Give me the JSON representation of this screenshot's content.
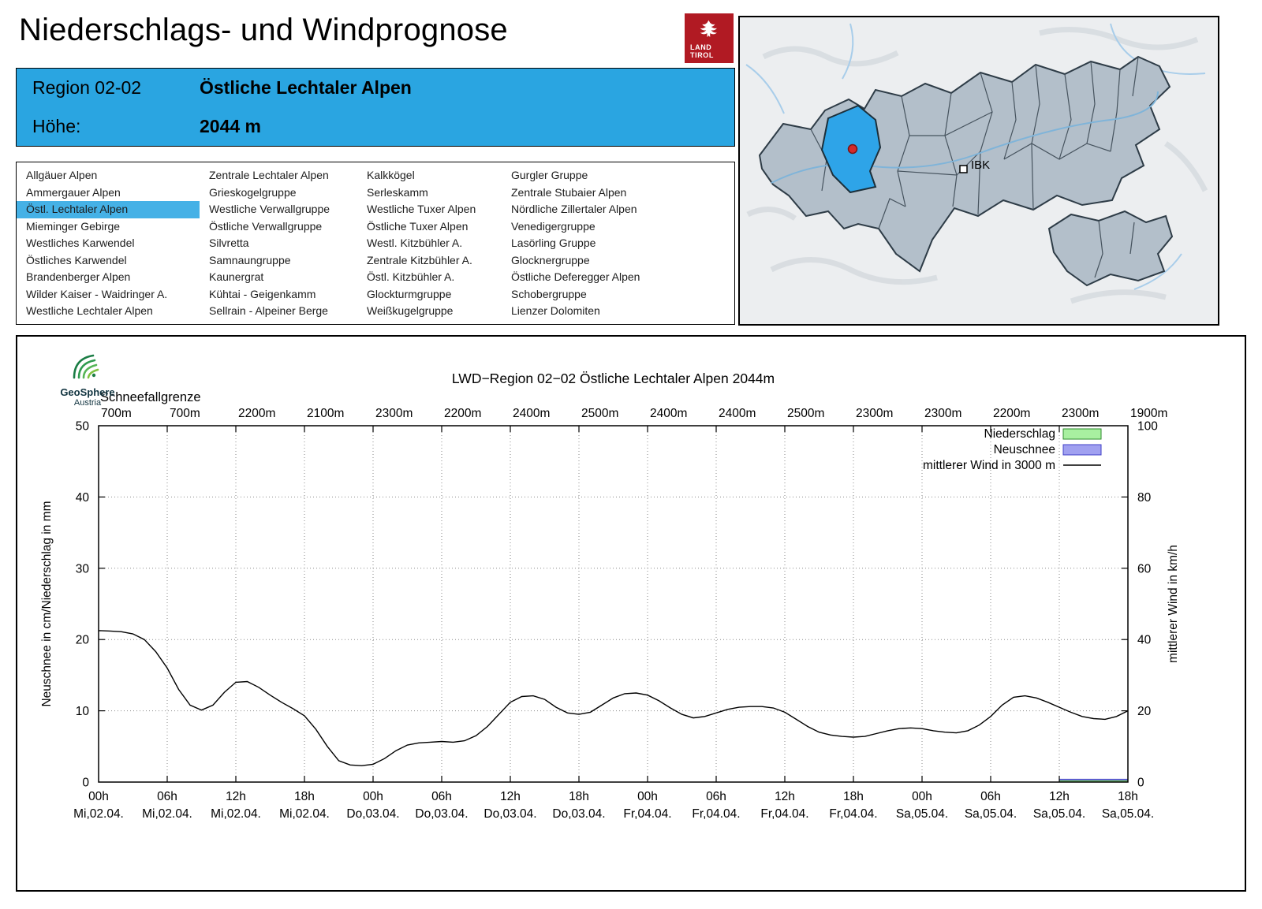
{
  "header": {
    "title": "Niederschlags- und Windprognose",
    "logo_line1": "LAND",
    "logo_line2": "TIROL"
  },
  "region_info": {
    "region_label": "Region 02-02",
    "region_name": "Östliche Lechtaler Alpen",
    "altitude_label": "Höhe:",
    "altitude_value": "2044 m"
  },
  "region_list": {
    "selected": "Östl. Lechtaler Alpen",
    "columns": [
      [
        "Allgäuer Alpen",
        "Ammergauer Alpen",
        "Östl. Lechtaler Alpen",
        "Mieminger Gebirge",
        "Westliches Karwendel",
        "Östliches Karwendel",
        "Brandenberger Alpen",
        "Wilder Kaiser - Waidringer A.",
        "Westliche Lechtaler Alpen"
      ],
      [
        "Zentrale Lechtaler Alpen",
        "Grieskogelgruppe",
        "Westliche Verwallgruppe",
        "Östliche Verwallgruppe",
        "Silvretta",
        "Samnaungruppe",
        "Kaunergrat",
        "Kühtai - Geigenkamm",
        "Sellrain - Alpeiner Berge"
      ],
      [
        "Kalkkögel",
        "Serleskamm",
        "Westliche Tuxer Alpen",
        "Östliche Tuxer Alpen",
        "Westl. Kitzbühler A.",
        "Zentrale Kitzbühler A.",
        "Östl. Kitzbühler A.",
        "Glockturmgruppe",
        "Weißkugelgruppe"
      ],
      [
        "Gurgler Gruppe",
        "Zentrale Stubaier Alpen",
        "Nördliche Zillertaler Alpen",
        "Venedigergruppe",
        "Lasörling Gruppe",
        "Glocknergruppe",
        "Östliche Deferegger Alpen",
        "Schobergruppe",
        "Lienzer Dolomiten"
      ]
    ]
  },
  "map": {
    "ibk_label": "IBK"
  },
  "geosphere": {
    "name": "GeoSphere",
    "country": "Austria"
  },
  "chart_data": {
    "type": "line",
    "title": "LWD−Region 02−02 Östliche Lechtaler Alpen 2044m",
    "snowline_label": "Schneefallgrenze",
    "snowline_values": [
      "700m",
      "700m",
      "2200m",
      "2100m",
      "2300m",
      "2200m",
      "2400m",
      "2500m",
      "2400m",
      "2400m",
      "2500m",
      "2300m",
      "2300m",
      "2200m",
      "2300m",
      "1900m"
    ],
    "x_tick_hours": [
      "00h",
      "06h",
      "12h",
      "18h",
      "00h",
      "06h",
      "12h",
      "18h",
      "00h",
      "06h",
      "12h",
      "18h",
      "00h",
      "06h",
      "12h",
      "18h"
    ],
    "x_tick_dates": [
      "Mi,02.04.",
      "Mi,02.04.",
      "Mi,02.04.",
      "Mi,02.04.",
      "Do,03.04.",
      "Do,03.04.",
      "Do,03.04.",
      "Do,03.04.",
      "Fr,04.04.",
      "Fr,04.04.",
      "Fr,04.04.",
      "Fr,04.04.",
      "Sa,05.04.",
      "Sa,05.04.",
      "Sa,05.04.",
      "Sa,05.04."
    ],
    "x_range_hours": [
      0,
      90
    ],
    "x_tick_step_hours": 6,
    "ylabel_left": "Neuschnee in cm/Niederschlag in mm",
    "ylabel_right": "mittlerer Wind in km/h",
    "ylim_left": [
      0,
      50
    ],
    "ylim_right": [
      0,
      100
    ],
    "yticks_left": [
      0,
      10,
      20,
      30,
      40,
      50
    ],
    "yticks_right": [
      0,
      20,
      40,
      60,
      80,
      100
    ],
    "grid": true,
    "legend_position": "top-right-inside",
    "legend": [
      {
        "label": "Niederschlag",
        "swatch": "box",
        "fill": "#a8f0a0",
        "stroke": "#2e8b2e"
      },
      {
        "label": "Neuschnee",
        "swatch": "box",
        "fill": "#a0a0f0",
        "stroke": "#4040c8"
      },
      {
        "label": "mittlerer Wind in 3000 m",
        "swatch": "line",
        "stroke": "#000000"
      }
    ],
    "series": [
      {
        "name": "mittlerer Wind in 3000 m",
        "type": "line",
        "axis": "right",
        "unit": "km/h",
        "color": "#000000",
        "points": [
          [
            0,
            42.5
          ],
          [
            1,
            42.4
          ],
          [
            2,
            42.2
          ],
          [
            3,
            41.6
          ],
          [
            4,
            40
          ],
          [
            5,
            36.6
          ],
          [
            6,
            32
          ],
          [
            7,
            26
          ],
          [
            8,
            21.6
          ],
          [
            9,
            20.2
          ],
          [
            10,
            21.6
          ],
          [
            11,
            25.2
          ],
          [
            12,
            28
          ],
          [
            13,
            28.2
          ],
          [
            14,
            26.6
          ],
          [
            15,
            24.4
          ],
          [
            16,
            22.4
          ],
          [
            17,
            20.6
          ],
          [
            18,
            18.6
          ],
          [
            19,
            14.8
          ],
          [
            20,
            10
          ],
          [
            21,
            6
          ],
          [
            22,
            4.8
          ],
          [
            23,
            4.6
          ],
          [
            24,
            5
          ],
          [
            25,
            6.6
          ],
          [
            26,
            8.8
          ],
          [
            27,
            10.4
          ],
          [
            28,
            11
          ],
          [
            29,
            11.2
          ],
          [
            30,
            11.4
          ],
          [
            31,
            11.2
          ],
          [
            32,
            11.6
          ],
          [
            33,
            13
          ],
          [
            34,
            15.6
          ],
          [
            35,
            19
          ],
          [
            36,
            22.4
          ],
          [
            37,
            24
          ],
          [
            38,
            24.2
          ],
          [
            39,
            23.2
          ],
          [
            40,
            21
          ],
          [
            41,
            19.4
          ],
          [
            42,
            19
          ],
          [
            43,
            19.6
          ],
          [
            44,
            21.6
          ],
          [
            45,
            23.6
          ],
          [
            46,
            24.8
          ],
          [
            47,
            25
          ],
          [
            48,
            24.4
          ],
          [
            49,
            22.8
          ],
          [
            50,
            20.8
          ],
          [
            51,
            19
          ],
          [
            52,
            18
          ],
          [
            53,
            18.4
          ],
          [
            54,
            19.4
          ],
          [
            55,
            20.4
          ],
          [
            56,
            21
          ],
          [
            57,
            21.2
          ],
          [
            58,
            21.2
          ],
          [
            59,
            20.8
          ],
          [
            60,
            19.6
          ],
          [
            61,
            17.6
          ],
          [
            62,
            15.6
          ],
          [
            63,
            14
          ],
          [
            64,
            13.2
          ],
          [
            65,
            12.8
          ],
          [
            66,
            12.6
          ],
          [
            67,
            12.8
          ],
          [
            68,
            13.6
          ],
          [
            69,
            14.4
          ],
          [
            70,
            15
          ],
          [
            71,
            15.2
          ],
          [
            72,
            15
          ],
          [
            73,
            14.4
          ],
          [
            74,
            14
          ],
          [
            75,
            13.8
          ],
          [
            76,
            14.4
          ],
          [
            77,
            16
          ],
          [
            78,
            18.4
          ],
          [
            79,
            21.6
          ],
          [
            80,
            23.8
          ],
          [
            81,
            24.2
          ],
          [
            82,
            23.6
          ],
          [
            83,
            22.4
          ],
          [
            84,
            21
          ],
          [
            85,
            19.6
          ],
          [
            86,
            18.4
          ],
          [
            87,
            17.8
          ],
          [
            88,
            17.6
          ],
          [
            89,
            18.4
          ],
          [
            90,
            20
          ]
        ]
      }
    ],
    "bars": [
      {
        "name": "Neuschnee",
        "axis": "left",
        "unit": "cm",
        "from_hour": 84,
        "to_hour": 90,
        "value": 0.4,
        "fill": "#a0a0f0",
        "stroke": "#4040c8"
      },
      {
        "name": "Niederschlag",
        "axis": "left",
        "unit": "mm",
        "from_hour": 84,
        "to_hour": 90,
        "value": 0.18,
        "fill": "#a8f0a0",
        "stroke": "#2e8b2e"
      }
    ]
  }
}
